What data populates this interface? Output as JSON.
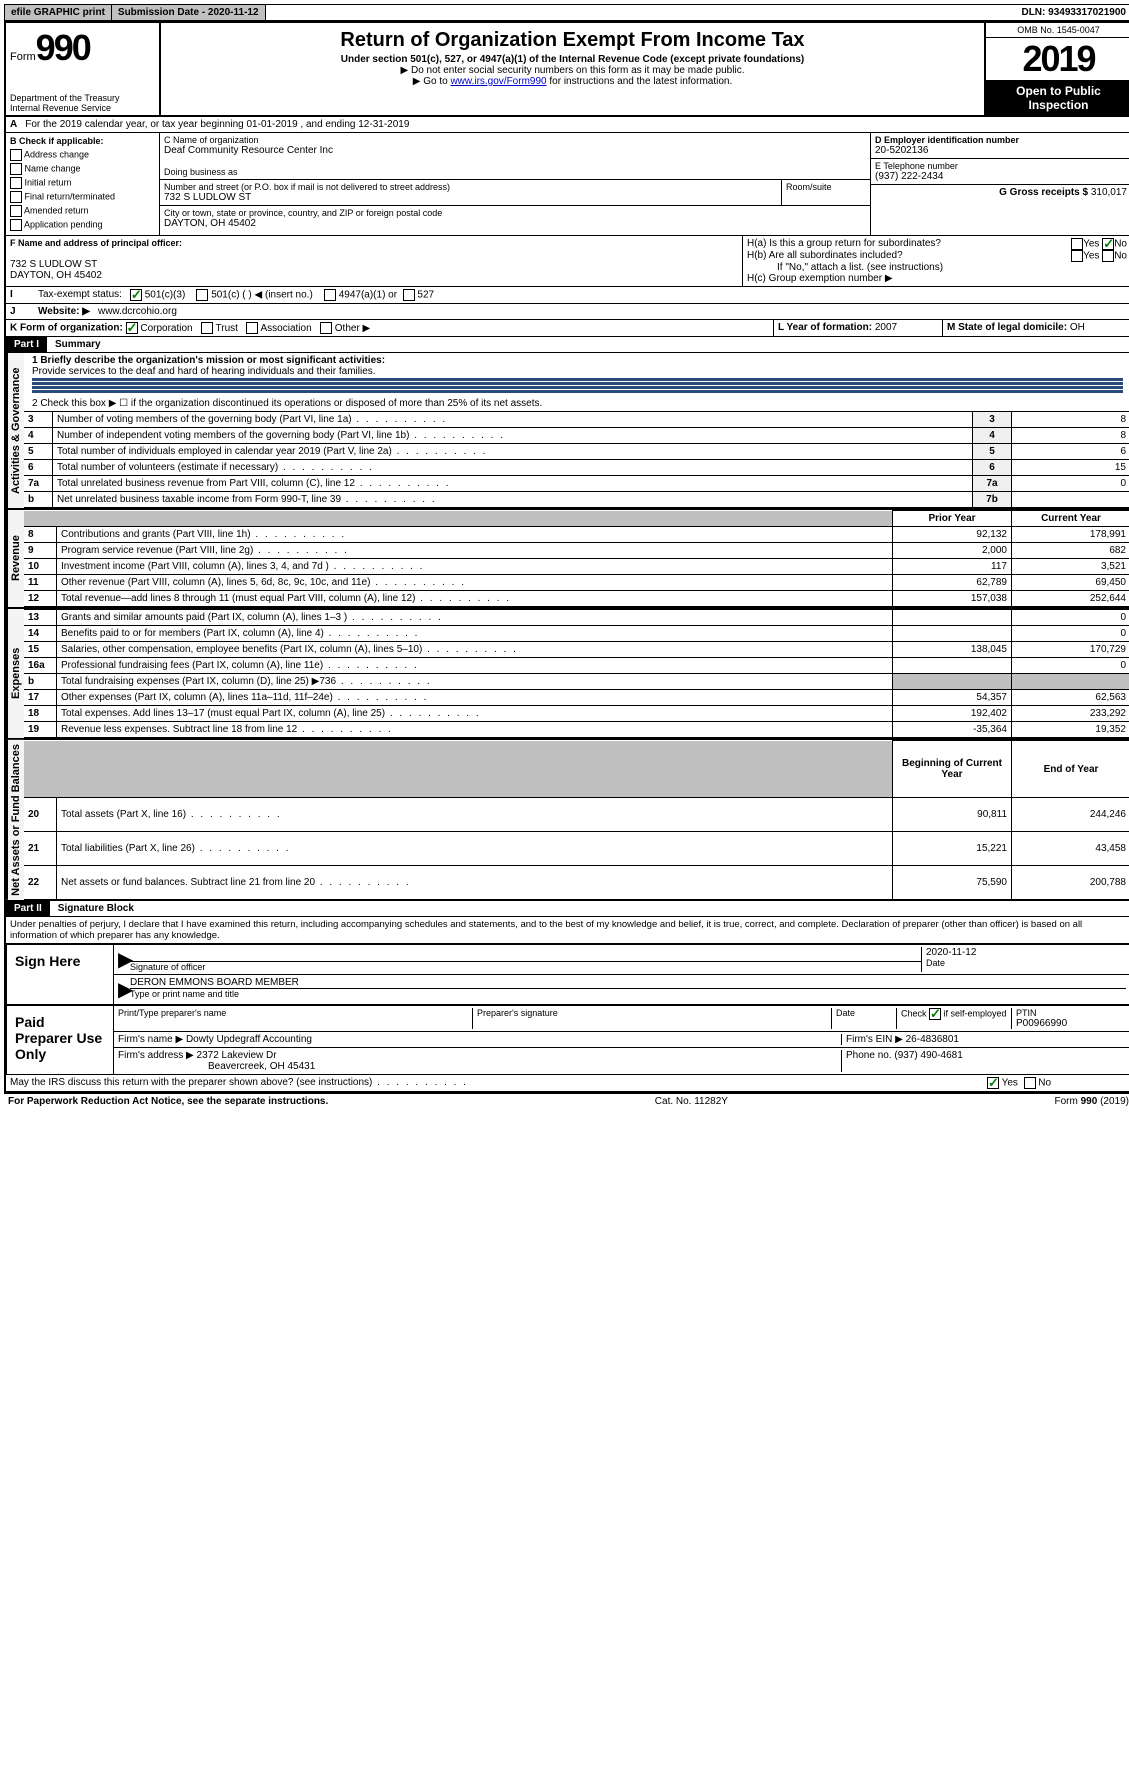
{
  "topbar": {
    "efile": "efile GRAPHIC print",
    "submission_label": "Submission Date - 2020-11-12",
    "dln": "DLN: 93493317021900"
  },
  "header": {
    "form_prefix": "Form",
    "form_number": "990",
    "dept": "Department of the Treasury\nInternal Revenue Service",
    "title": "Return of Organization Exempt From Income Tax",
    "subtitle": "Under section 501(c), 527, or 4947(a)(1) of the Internal Revenue Code (except private foundations)",
    "instr1": "Do not enter social security numbers on this form as it may be made public.",
    "instr2_pre": "Go to ",
    "instr2_link": "www.irs.gov/Form990",
    "instr2_post": " for instructions and the latest information.",
    "omb": "OMB No. 1545-0047",
    "year": "2019",
    "open": "Open to Public Inspection"
  },
  "periodA": "For the 2019 calendar year, or tax year beginning 01-01-2019   , and ending 12-31-2019",
  "sectionB": {
    "header": "B Check if applicable:",
    "items": [
      "Address change",
      "Name change",
      "Initial return",
      "Final return/terminated",
      "Amended return",
      "Application pending"
    ]
  },
  "sectionC": {
    "label": "C Name of organization",
    "name": "Deaf Community Resource Center Inc",
    "dba_label": "Doing business as",
    "street_label": "Number and street (or P.O. box if mail is not delivered to street address)",
    "room_label": "Room/suite",
    "street": "732 S LUDLOW ST",
    "city_label": "City or town, state or province, country, and ZIP or foreign postal code",
    "city": "DAYTON, OH  45402"
  },
  "sectionD": {
    "label": "D Employer identification number",
    "value": "20-5202136"
  },
  "sectionE": {
    "label": "E Telephone number",
    "value": "(937) 222-2434"
  },
  "sectionG": {
    "label": "G Gross receipts $",
    "value": "310,017"
  },
  "sectionF": {
    "label": "F  Name and address of principal officer:",
    "addr1": "732 S LUDLOW ST",
    "addr2": "DAYTON, OH  45402"
  },
  "sectionH": {
    "a": "H(a)  Is this a group return for subordinates?",
    "b": "H(b)  Are all subordinates included?",
    "bnote": "If \"No,\" attach a list. (see instructions)",
    "c": "H(c)  Group exemption number ▶",
    "yes": "Yes",
    "no": "No"
  },
  "sectionI": {
    "label": "Tax-exempt status:",
    "opt1": "501(c)(3)",
    "opt2": "501(c) (  ) ◀ (insert no.)",
    "opt3": "4947(a)(1) or",
    "opt4": "527"
  },
  "sectionJ": {
    "label": "Website: ▶",
    "value": "www.dcrcohio.org"
  },
  "sectionK": {
    "label": "K Form of organization:",
    "opts": [
      "Corporation",
      "Trust",
      "Association",
      "Other ▶"
    ]
  },
  "sectionL": {
    "label": "L Year of formation:",
    "value": "2007"
  },
  "sectionM": {
    "label": "M State of legal domicile:",
    "value": "OH"
  },
  "part1": {
    "header": "Part I",
    "title": "Summary",
    "line1_label": "1  Briefly describe the organization's mission or most significant activities:",
    "line1_text": "Provide services to the deaf and hard of hearing individuals and their families.",
    "line2": "2   Check this box ▶ ☐  if the organization discontinued its operations or disposed of more than 25% of its net assets.",
    "groups": {
      "ag": "Activities & Governance",
      "rev": "Revenue",
      "exp": "Expenses",
      "net": "Net Assets or Fund Balances"
    },
    "col_prior": "Prior Year",
    "col_current": "Current Year",
    "col_begin": "Beginning of Current Year",
    "col_end": "End of Year",
    "rows_ag": [
      {
        "n": "3",
        "t": "Number of voting members of the governing body (Part VI, line 1a)",
        "box": "3",
        "v": "8"
      },
      {
        "n": "4",
        "t": "Number of independent voting members of the governing body (Part VI, line 1b)",
        "box": "4",
        "v": "8"
      },
      {
        "n": "5",
        "t": "Total number of individuals employed in calendar year 2019 (Part V, line 2a)",
        "box": "5",
        "v": "6"
      },
      {
        "n": "6",
        "t": "Total number of volunteers (estimate if necessary)",
        "box": "6",
        "v": "15"
      },
      {
        "n": "7a",
        "t": "Total unrelated business revenue from Part VIII, column (C), line 12",
        "box": "7a",
        "v": "0"
      },
      {
        "n": "b",
        "t": "Net unrelated business taxable income from Form 990-T, line 39",
        "box": "7b",
        "v": ""
      }
    ],
    "rows_rev": [
      {
        "n": "8",
        "t": "Contributions and grants (Part VIII, line 1h)",
        "p": "92,132",
        "c": "178,991"
      },
      {
        "n": "9",
        "t": "Program service revenue (Part VIII, line 2g)",
        "p": "2,000",
        "c": "682"
      },
      {
        "n": "10",
        "t": "Investment income (Part VIII, column (A), lines 3, 4, and 7d )",
        "p": "117",
        "c": "3,521"
      },
      {
        "n": "11",
        "t": "Other revenue (Part VIII, column (A), lines 5, 6d, 8c, 9c, 10c, and 11e)",
        "p": "62,789",
        "c": "69,450"
      },
      {
        "n": "12",
        "t": "Total revenue—add lines 8 through 11 (must equal Part VIII, column (A), line 12)",
        "p": "157,038",
        "c": "252,644"
      }
    ],
    "rows_exp": [
      {
        "n": "13",
        "t": "Grants and similar amounts paid (Part IX, column (A), lines 1–3 )",
        "p": "",
        "c": "0"
      },
      {
        "n": "14",
        "t": "Benefits paid to or for members (Part IX, column (A), line 4)",
        "p": "",
        "c": "0"
      },
      {
        "n": "15",
        "t": "Salaries, other compensation, employee benefits (Part IX, column (A), lines 5–10)",
        "p": "138,045",
        "c": "170,729"
      },
      {
        "n": "16a",
        "t": "Professional fundraising fees (Part IX, column (A), line 11e)",
        "p": "",
        "c": "0"
      },
      {
        "n": "b",
        "t": "Total fundraising expenses (Part IX, column (D), line 25) ▶736",
        "p": "GREY",
        "c": "GREY"
      },
      {
        "n": "17",
        "t": "Other expenses (Part IX, column (A), lines 11a–11d, 11f–24e)",
        "p": "54,357",
        "c": "62,563"
      },
      {
        "n": "18",
        "t": "Total expenses. Add lines 13–17 (must equal Part IX, column (A), line 25)",
        "p": "192,402",
        "c": "233,292"
      },
      {
        "n": "19",
        "t": "Revenue less expenses. Subtract line 18 from line 12",
        "p": "-35,364",
        "c": "19,352"
      }
    ],
    "rows_net": [
      {
        "n": "20",
        "t": "Total assets (Part X, line 16)",
        "p": "90,811",
        "c": "244,246"
      },
      {
        "n": "21",
        "t": "Total liabilities (Part X, line 26)",
        "p": "15,221",
        "c": "43,458"
      },
      {
        "n": "22",
        "t": "Net assets or fund balances. Subtract line 21 from line 20",
        "p": "75,590",
        "c": "200,788"
      }
    ]
  },
  "part2": {
    "header": "Part II",
    "title": "Signature Block",
    "declaration": "Under penalties of perjury, I declare that I have examined this return, including accompanying schedules and statements, and to the best of my knowledge and belief, it is true, correct, and complete. Declaration of preparer (other than officer) is based on all information of which preparer has any knowledge.",
    "sign_here": "Sign Here",
    "sig_officer": "Signature of officer",
    "sig_date": "2020-11-12",
    "date_label": "Date",
    "officer_name": "DERON EMMONS  BOARD MEMBER",
    "type_name": "Type or print name and title",
    "paid": "Paid Preparer Use Only",
    "prep_name_label": "Print/Type preparer's name",
    "prep_sig_label": "Preparer's signature",
    "check_if": "Check ☑ if self-employed",
    "ptin_label": "PTIN",
    "ptin": "P00966990",
    "firm_name_label": "Firm's name   ▶",
    "firm_name": "Dowty Updegraff Accounting",
    "firm_ein_label": "Firm's EIN ▶",
    "firm_ein": "26-4836801",
    "firm_addr_label": "Firm's address ▶",
    "firm_addr1": "2372 Lakeview Dr",
    "firm_addr2": "Beavercreek, OH  45431",
    "phone_label": "Phone no.",
    "phone": "(937) 490-4681",
    "discuss": "May the IRS discuss this return with the preparer shown above? (see instructions)"
  },
  "footer": {
    "pra": "For Paperwork Reduction Act Notice, see the separate instructions.",
    "cat": "Cat. No. 11282Y",
    "form": "Form 990 (2019)"
  }
}
